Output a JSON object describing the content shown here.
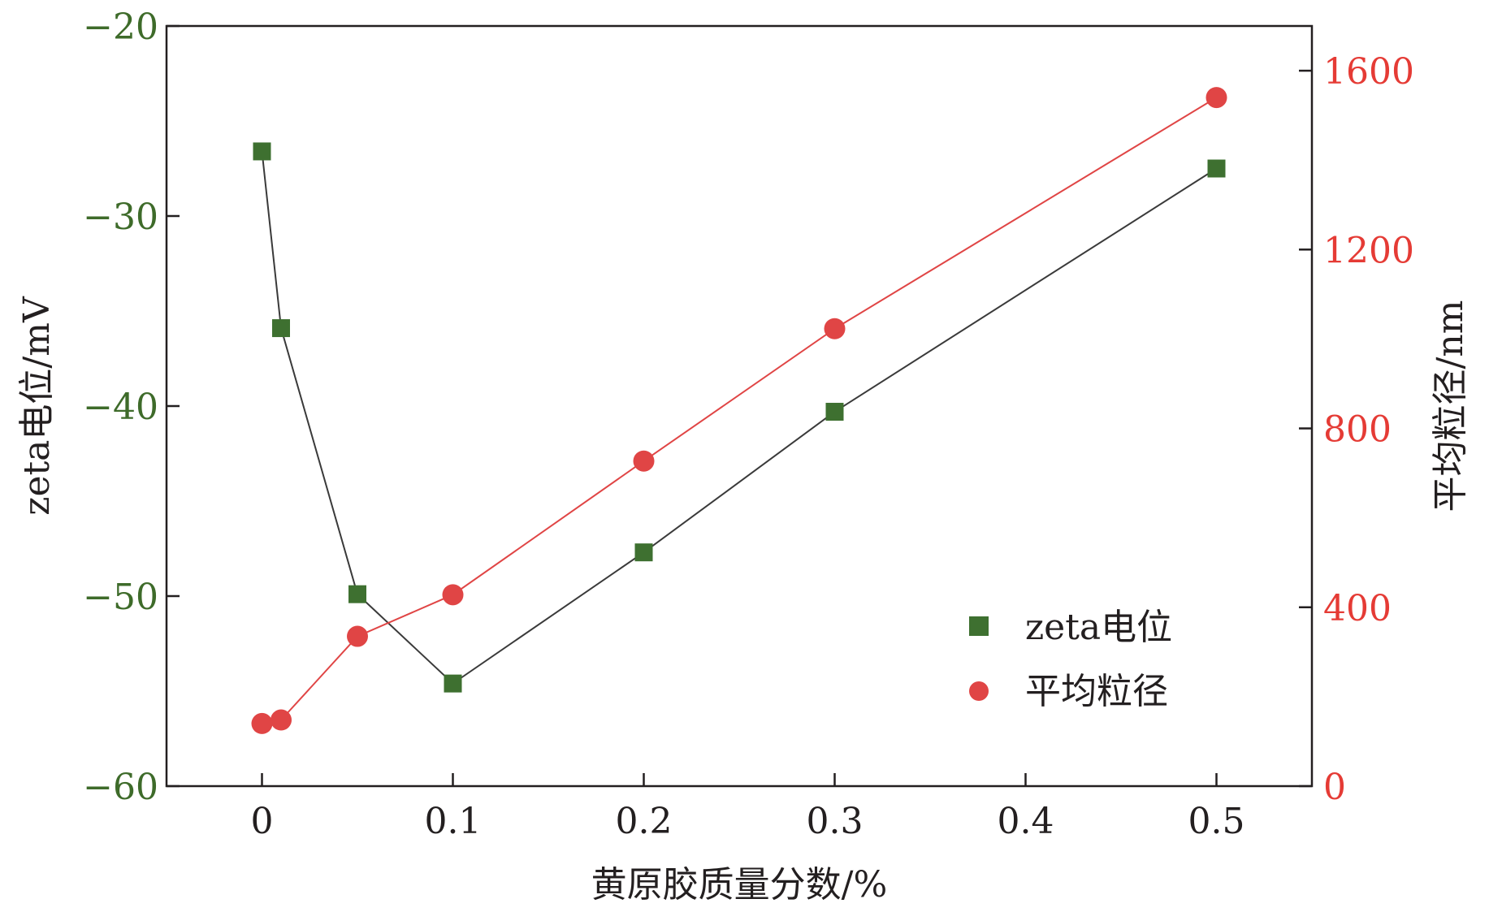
{
  "chart_data": {
    "type": "line",
    "xlabel": "黄原胶质量分数/%",
    "ylabel_left": "zeta电位/mV",
    "ylabel_right": "平均粒径/nm",
    "xlim": [
      -0.05,
      0.55
    ],
    "xticks": [
      "0",
      "0.1",
      "0.2",
      "0.3",
      "0.4",
      "0.5"
    ],
    "xtick_values": [
      0,
      0.1,
      0.2,
      0.3,
      0.4,
      0.5
    ],
    "ylim_left": [
      -60,
      -20
    ],
    "yticks_left": [
      "−20",
      "−30",
      "−40",
      "−50",
      "−60"
    ],
    "ytick_values_left": [
      -20,
      -30,
      -40,
      -50,
      -60
    ],
    "ylim_right": [
      0,
      1700
    ],
    "yticks_right": [
      "0",
      "400",
      "800",
      "1200",
      "1600"
    ],
    "ytick_values_right": [
      0,
      400,
      800,
      1200,
      1600
    ],
    "legend_position": "bottom-right",
    "series": [
      {
        "name": "zeta电位",
        "axis": "left",
        "marker": "square",
        "color": "#3e7030",
        "line_color": "#3a3a3a",
        "x": [
          0,
          0.01,
          0.05,
          0.1,
          0.2,
          0.3,
          0.5
        ],
        "y": [
          -26.6,
          -35.9,
          -49.9,
          -54.6,
          -47.7,
          -40.3,
          -27.5
        ]
      },
      {
        "name": "平均粒径",
        "axis": "right",
        "marker": "circle",
        "color": "#e04545",
        "line_color": "#e04545",
        "x": [
          0,
          0.01,
          0.05,
          0.1,
          0.2,
          0.3,
          0.5
        ],
        "y": [
          140,
          148,
          335,
          428,
          727,
          1023,
          1540
        ]
      }
    ]
  }
}
